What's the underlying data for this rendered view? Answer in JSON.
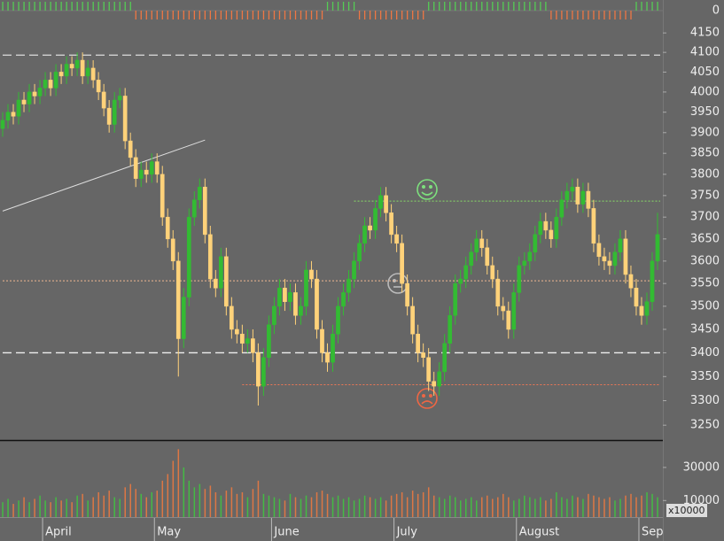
{
  "chart_data": {
    "type": "candlestick",
    "log_scale": true,
    "up_color": "#33bb33",
    "down_color": "#ffd27a",
    "categories": [
      null,
      null,
      null,
      null,
      null,
      null,
      null,
      null,
      "April",
      null,
      null,
      null,
      null,
      null,
      null,
      null,
      null,
      null,
      null,
      null,
      null,
      null,
      null,
      null,
      null,
      null,
      null,
      null,
      null,
      "May",
      null,
      null,
      null,
      null,
      null,
      null,
      null,
      null,
      null,
      null,
      null,
      null,
      null,
      null,
      null,
      null,
      null,
      null,
      null,
      null,
      null,
      "June",
      null,
      null,
      null,
      null,
      null,
      null,
      null,
      null,
      null,
      null,
      null,
      null,
      null,
      null,
      null,
      null,
      null,
      null,
      null,
      null,
      null,
      null,
      "July",
      null,
      null,
      null,
      null,
      null,
      null,
      null,
      null,
      null,
      null,
      null,
      null,
      null,
      null,
      null,
      null,
      null,
      null,
      null,
      null,
      null,
      null,
      "August",
      null,
      null,
      null,
      null,
      null,
      null,
      null,
      null,
      null,
      null,
      null,
      null,
      null,
      null,
      null,
      null,
      null,
      null,
      null,
      null,
      null,
      null,
      "Sep",
      null,
      null,
      null
    ],
    "open": [
      3910,
      3930,
      3950,
      3940,
      3980,
      3970,
      4000,
      3990,
      4010,
      4030,
      4010,
      4050,
      4040,
      4070,
      4060,
      4080,
      4040,
      4060,
      4030,
      4000,
      3960,
      3920,
      3980,
      3990,
      3880,
      3840,
      3790,
      3810,
      3800,
      3830,
      3800,
      3700,
      3650,
      3600,
      3430,
      3520,
      3700,
      3740,
      3770,
      3660,
      3560,
      3540,
      3610,
      3500,
      3450,
      3440,
      3420,
      3430,
      3400,
      3330,
      3390,
      3460,
      3500,
      3540,
      3510,
      3530,
      3480,
      3500,
      3580,
      3560,
      3450,
      3400,
      3380,
      3440,
      3500,
      3530,
      3560,
      3600,
      3640,
      3680,
      3670,
      3720,
      3750,
      3710,
      3660,
      3640,
      3550,
      3500,
      3440,
      3400,
      3390,
      3340,
      3330,
      3360,
      3420,
      3480,
      3550,
      3560,
      3590,
      3620,
      3650,
      3630,
      3590,
      3560,
      3500,
      3490,
      3450,
      3530,
      3590,
      3600,
      3620,
      3660,
      3690,
      3670,
      3650,
      3700,
      3740,
      3760,
      3770,
      3730,
      3760,
      3720,
      3640,
      3610,
      3600,
      3590,
      3620,
      3650,
      3570,
      3540,
      3500,
      3480,
      3510,
      3600
    ],
    "high": [
      3950,
      3970,
      3970,
      4000,
      4000,
      4020,
      4020,
      4030,
      4050,
      4050,
      4070,
      4070,
      4090,
      4090,
      4100,
      4100,
      4080,
      4080,
      4050,
      4020,
      3980,
      4000,
      4010,
      4010,
      3900,
      3860,
      3830,
      3830,
      3850,
      3850,
      3820,
      3720,
      3670,
      3620,
      3540,
      3720,
      3760,
      3790,
      3790,
      3680,
      3580,
      3630,
      3630,
      3520,
      3470,
      3460,
      3450,
      3450,
      3420,
      3410,
      3480,
      3520,
      3560,
      3560,
      3550,
      3550,
      3520,
      3600,
      3600,
      3580,
      3470,
      3420,
      3460,
      3520,
      3550,
      3580,
      3620,
      3660,
      3700,
      3700,
      3740,
      3770,
      3770,
      3730,
      3680,
      3660,
      3570,
      3520,
      3460,
      3420,
      3410,
      3360,
      3380,
      3440,
      3500,
      3570,
      3580,
      3610,
      3640,
      3670,
      3670,
      3650,
      3610,
      3580,
      3520,
      3510,
      3550,
      3610,
      3620,
      3640,
      3680,
      3710,
      3710,
      3690,
      3720,
      3760,
      3780,
      3790,
      3790,
      3780,
      3780,
      3740,
      3660,
      3630,
      3620,
      3640,
      3670,
      3670,
      3590,
      3560,
      3520,
      3530,
      3620,
      3710
    ],
    "low": [
      3890,
      3910,
      3920,
      3920,
      3950,
      3950,
      3970,
      3970,
      3990,
      3990,
      3990,
      4020,
      4020,
      4040,
      4040,
      4020,
      4020,
      4010,
      3980,
      3940,
      3900,
      3900,
      3960,
      3860,
      3820,
      3770,
      3770,
      3780,
      3780,
      3780,
      3680,
      3630,
      3580,
      3350,
      3410,
      3500,
      3680,
      3720,
      3640,
      3540,
      3520,
      3520,
      3480,
      3430,
      3420,
      3400,
      3400,
      3380,
      3290,
      3310,
      3370,
      3440,
      3480,
      3490,
      3490,
      3460,
      3460,
      3480,
      3540,
      3430,
      3380,
      3360,
      3360,
      3420,
      3480,
      3510,
      3540,
      3580,
      3620,
      3650,
      3650,
      3700,
      3690,
      3640,
      3620,
      3530,
      3480,
      3420,
      3380,
      3370,
      3320,
      3310,
      3310,
      3340,
      3400,
      3460,
      3530,
      3540,
      3570,
      3600,
      3610,
      3570,
      3540,
      3480,
      3470,
      3430,
      3430,
      3510,
      3570,
      3580,
      3600,
      3640,
      3650,
      3630,
      3630,
      3680,
      3720,
      3740,
      3710,
      3710,
      3700,
      3620,
      3590,
      3580,
      3570,
      3570,
      3600,
      3550,
      3520,
      3480,
      3460,
      3460,
      3490,
      3580
    ],
    "close": [
      3930,
      3950,
      3940,
      3980,
      3970,
      4000,
      3990,
      4010,
      4030,
      4010,
      4050,
      4040,
      4070,
      4060,
      4080,
      4040,
      4060,
      4030,
      4000,
      3960,
      3920,
      3980,
      3990,
      3880,
      3840,
      3790,
      3810,
      3800,
      3830,
      3800,
      3700,
      3650,
      3600,
      3430,
      3520,
      3700,
      3740,
      3770,
      3660,
      3560,
      3540,
      3610,
      3500,
      3450,
      3440,
      3420,
      3430,
      3400,
      3330,
      3390,
      3460,
      3500,
      3540,
      3510,
      3530,
      3480,
      3500,
      3580,
      3560,
      3450,
      3400,
      3380,
      3440,
      3500,
      3530,
      3560,
      3600,
      3640,
      3680,
      3670,
      3720,
      3750,
      3710,
      3660,
      3640,
      3550,
      3500,
      3440,
      3400,
      3390,
      3340,
      3330,
      3360,
      3420,
      3480,
      3550,
      3560,
      3590,
      3620,
      3650,
      3630,
      3590,
      3560,
      3500,
      3490,
      3450,
      3530,
      3590,
      3600,
      3620,
      3660,
      3690,
      3670,
      3650,
      3700,
      3740,
      3760,
      3770,
      3730,
      3760,
      3720,
      3640,
      3610,
      3600,
      3590,
      3620,
      3650,
      3570,
      3540,
      3500,
      3480,
      3510,
      3600,
      3660
    ],
    "ylim": [
      3220,
      4178
    ],
    "yticks": [
      4150,
      4100,
      4050,
      4000,
      3950,
      3900,
      3850,
      3800,
      3750,
      3700,
      3650,
      3600,
      3550,
      3500,
      3450,
      3400,
      3350,
      3300,
      3250
    ],
    "reference_lines": [
      {
        "value": 4093,
        "from_index": 0,
        "color": "#dddddd",
        "dash": "dashed"
      },
      {
        "value": 3400,
        "from_index": 0,
        "color": "#eeeeee",
        "dash": "dashed"
      },
      {
        "value": 3556,
        "from_index": 0,
        "color": "#f0b890",
        "dash": "dotted"
      },
      {
        "value": 3737,
        "from_index": 66,
        "color": "#88dd66",
        "dash": "dotted"
      },
      {
        "value": 3333,
        "from_index": 45,
        "color": "#ee7755",
        "dash": "dotted"
      }
    ],
    "trendline": {
      "x": [
        0,
        38
      ],
      "values": [
        3714,
        3882
      ],
      "color": "#dddddd"
    },
    "indicator": {
      "values": [
        1,
        1,
        1,
        1,
        1,
        1,
        1,
        1,
        1,
        1,
        1,
        1,
        1,
        1,
        1,
        1,
        1,
        1,
        1,
        1,
        1,
        1,
        1,
        1,
        1,
        -1,
        -1,
        -1,
        -1,
        -1,
        -1,
        -1,
        -1,
        -1,
        -1,
        -1,
        -1,
        -1,
        -1,
        -1,
        -1,
        -1,
        -1,
        -1,
        -1,
        -1,
        -1,
        -1,
        -1,
        -1,
        -1,
        -1,
        -1,
        -1,
        -1,
        -1,
        -1,
        -1,
        -1,
        -1,
        -1,
        1,
        1,
        1,
        1,
        1,
        1,
        -1,
        -1,
        -1,
        -1,
        -1,
        -1,
        -1,
        -1,
        -1,
        -1,
        -1,
        -1,
        -1,
        1,
        1,
        1,
        1,
        1,
        1,
        1,
        1,
        1,
        1,
        1,
        1,
        1,
        1,
        1,
        1,
        1,
        1,
        1,
        1,
        1,
        1,
        1,
        -1,
        -1,
        -1,
        -1,
        -1,
        -1,
        -1,
        -1,
        -1,
        -1,
        -1,
        -1,
        -1,
        -1,
        -1,
        -1,
        1,
        1,
        1,
        1,
        1
      ],
      "yticks": [
        0
      ]
    },
    "volume": {
      "values": [
        9000,
        11000,
        8000,
        10000,
        12000,
        9000,
        11000,
        13000,
        10000,
        9000,
        12000,
        10000,
        11000,
        9000,
        13000,
        14000,
        10000,
        12000,
        15000,
        13000,
        16000,
        12000,
        11000,
        18000,
        20000,
        17000,
        14000,
        12000,
        15000,
        16000,
        22000,
        26000,
        34000,
        41000,
        30000,
        22000,
        18000,
        20000,
        17000,
        19000,
        15000,
        13000,
        16000,
        18000,
        14000,
        15000,
        12000,
        17000,
        22000,
        14000,
        13000,
        12000,
        11000,
        10000,
        14000,
        12000,
        11000,
        13000,
        12000,
        15000,
        16000,
        14000,
        12000,
        13000,
        11000,
        12000,
        10000,
        11000,
        13000,
        12000,
        11000,
        12000,
        10000,
        13000,
        14000,
        15000,
        12000,
        16000,
        14000,
        15000,
        18000,
        13000,
        12000,
        11000,
        13000,
        12000,
        10000,
        11000,
        12000,
        10000,
        12000,
        13000,
        11000,
        12000,
        14000,
        12000,
        10000,
        11000,
        13000,
        12000,
        11000,
        12000,
        10000,
        11000,
        15000,
        12000,
        11000,
        13000,
        12000,
        11000,
        14000,
        13000,
        12000,
        11000,
        12000,
        10000,
        11000,
        13000,
        14000,
        12000,
        13000,
        15000,
        14000,
        12000
      ],
      "ylim": [
        0,
        46000
      ],
      "yticks": [
        30000,
        10000
      ],
      "unit_label": "x10000"
    }
  }
}
